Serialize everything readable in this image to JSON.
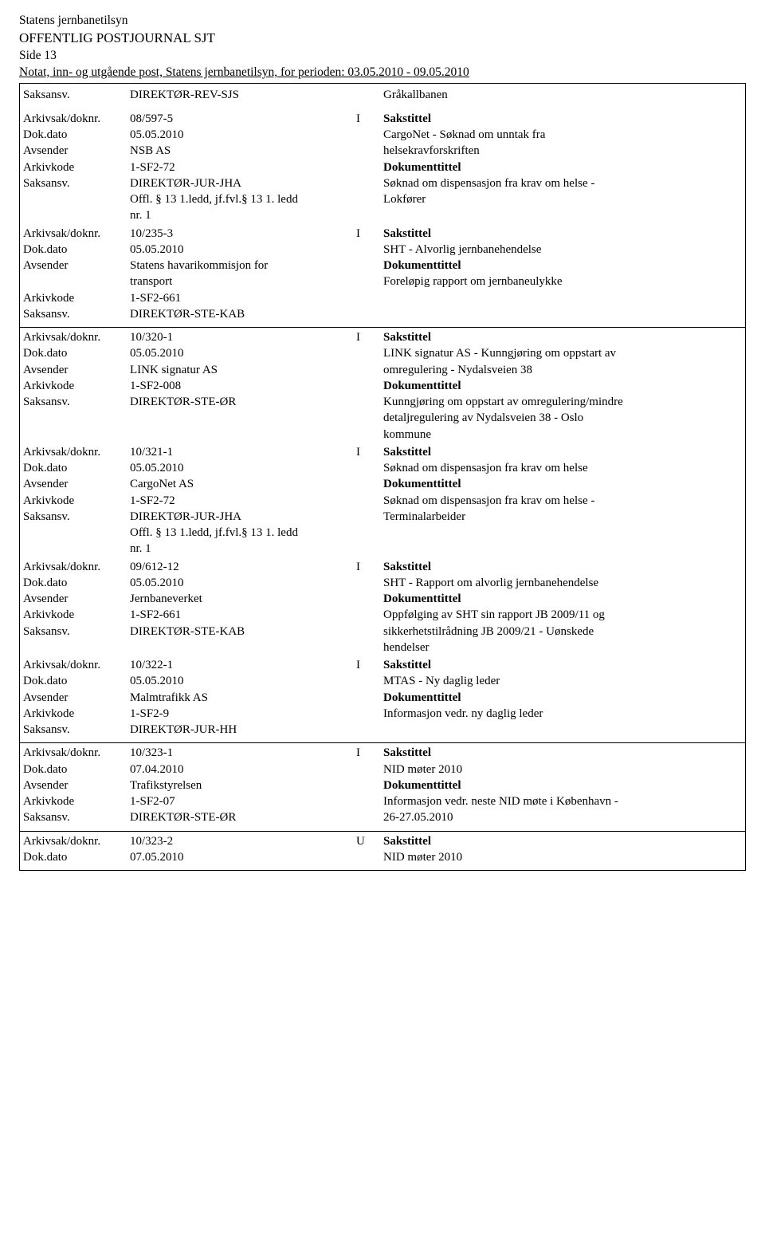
{
  "header": {
    "org": "Statens jernbanetilsyn",
    "title": "OFFENTLIG POSTJOURNAL SJT",
    "page": "Side 13",
    "subtitle": "Notat, inn- og utgående post, Statens jernbanetilsyn, for perioden: 03.05.2010 - 09.05.2010"
  },
  "labels": {
    "saksansv": "Saksansv.",
    "arkivsak": "Arkivsak/doknr.",
    "dokdato": "Dok.dato",
    "avsender": "Avsender",
    "arkivkode": "Arkivkode",
    "sakstittel": "Sakstittel",
    "dokumenttittel": "Dokumenttittel"
  },
  "topRow": {
    "saksansv": "DIREKTØR-REV-SJS",
    "right": "Gråkallbanen"
  },
  "groups": [
    {
      "entries": [
        {
          "arkivsak": "08/597-5",
          "io": "I",
          "dokdato": "05.05.2010",
          "avsender": "NSB AS",
          "arkivkode": "1-SF2-72",
          "saksansv": "DIREKTØR-JUR-JHA",
          "extra": [
            "Offl. § 13 1.ledd, jf.fvl.§ 13 1. ledd",
            "nr. 1"
          ],
          "sakstittel": [
            "CargoNet - Søknad om unntak fra",
            "helsekravforskriften"
          ],
          "doktittel": [
            "Søknad om dispensasjon fra krav om helse -",
            "Lokfører"
          ]
        },
        {
          "arkivsak": "10/235-3",
          "io": "I",
          "dokdato": "05.05.2010",
          "avsender": "Statens havarikommisjon for",
          "avsender2": "transport",
          "arkivkode": "1-SF2-661",
          "saksansv": "DIREKTØR-STE-KAB",
          "sakstittel": [
            "SHT - Alvorlig jernbanehendelse"
          ],
          "doktittel": [
            "Foreløpig rapport om jernbaneulykke"
          ]
        }
      ]
    },
    {
      "entries": [
        {
          "arkivsak": "10/320-1",
          "io": "I",
          "dokdato": "05.05.2010",
          "avsender": "LINK signatur AS",
          "arkivkode": "1-SF2-008",
          "saksansv": "DIREKTØR-STE-ØR",
          "sakstittel": [
            "LINK signatur AS - Kunngjøring om oppstart av",
            "omregulering - Nydalsveien 38"
          ],
          "doktittel": [
            "Kunngjøring om oppstart av omregulering/mindre",
            "detaljregulering av Nydalsveien 38 - Oslo",
            "kommune"
          ]
        },
        {
          "arkivsak": "10/321-1",
          "io": "I",
          "dokdato": "05.05.2010",
          "avsender": "CargoNet AS",
          "arkivkode": "1-SF2-72",
          "saksansv": "DIREKTØR-JUR-JHA",
          "extra": [
            "Offl. § 13 1.ledd, jf.fvl.§ 13 1. ledd",
            "nr. 1"
          ],
          "sakstittel": [
            "Søknad om dispensasjon fra krav om helse"
          ],
          "doktittel": [
            "Søknad om dispensasjon fra krav om helse -",
            "Terminalarbeider"
          ]
        },
        {
          "arkivsak": "09/612-12",
          "io": "I",
          "dokdato": "05.05.2010",
          "avsender": "Jernbaneverket",
          "arkivkode": "1-SF2-661",
          "saksansv": "DIREKTØR-STE-KAB",
          "sakstittel": [
            "SHT - Rapport om alvorlig jernbanehendelse"
          ],
          "doktittel": [
            "Oppfølging av SHT sin rapport JB 2009/11 og",
            "sikkerhetstilrådning JB 2009/21 - Uønskede",
            "hendelser"
          ]
        },
        {
          "arkivsak": "10/322-1",
          "io": "I",
          "dokdato": "05.05.2010",
          "avsender": "Malmtrafikk AS",
          "arkivkode": "1-SF2-9",
          "saksansv": "DIREKTØR-JUR-HH",
          "sakstittel": [
            "MTAS - Ny daglig leder"
          ],
          "doktittel": [
            "Informasjon vedr. ny daglig leder"
          ]
        }
      ]
    },
    {
      "entries": [
        {
          "arkivsak": "10/323-1",
          "io": "I",
          "dokdato": "07.04.2010",
          "avsender": "Trafikstyrelsen",
          "arkivkode": "1-SF2-07",
          "saksansv": "DIREKTØR-STE-ØR",
          "sakstittel": [
            "NID møter 2010"
          ],
          "doktittel": [
            "Informasjon vedr. neste NID møte i København -",
            "26-27.05.2010"
          ]
        }
      ]
    },
    {
      "entries": [
        {
          "arkivsak": "10/323-2",
          "io": "U",
          "dokdato": "07.05.2010",
          "sakstittel": [
            "NID møter 2010"
          ],
          "partial": true
        }
      ]
    }
  ]
}
